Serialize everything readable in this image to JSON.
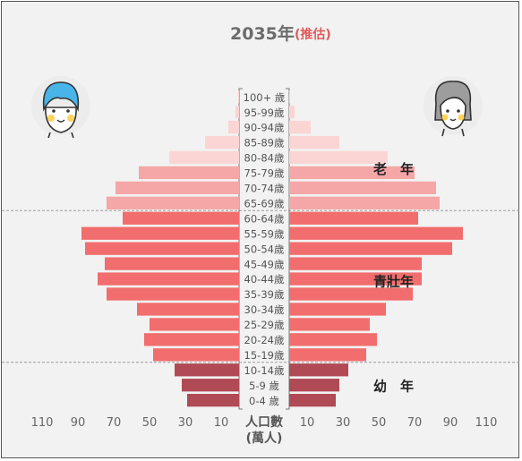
{
  "colors": {
    "young": "#b04a55",
    "working": "#f26d6d",
    "senior_dark": "#f5a6a6",
    "senior_light": "#fbd4d4",
    "background": "#f2f2f2",
    "divider": "#999999"
  },
  "icons": {
    "male": "boy-avatar-icon",
    "female": "grandmother-avatar-icon"
  },
  "chart_data": {
    "type": "bar",
    "orientation": "horizontal-population-pyramid",
    "title": "2035年",
    "subtitle": "(推估)",
    "center_label": "人口數",
    "unit_label": "(萬人)",
    "xlim": [
      0,
      110
    ],
    "ticks_left": [
      "110",
      "90",
      "70",
      "50",
      "30",
      "10"
    ],
    "ticks_right": [
      "10",
      "30",
      "50",
      "70",
      "90",
      "110"
    ],
    "tick_values": [
      10,
      30,
      50,
      70,
      90,
      110
    ],
    "categories": [
      "100+ 歲",
      "95-99歲",
      "90-94歲",
      "85-89歲",
      "80-84歲",
      "75-79歲",
      "70-74歲",
      "65-69歲",
      "60-64歲",
      "55-59歲",
      "50-54歲",
      "45-49歲",
      "40-44歲",
      "35-39歲",
      "30-34歲",
      "25-29歲",
      "20-24歲",
      "15-19歲",
      "10-14歲",
      "5-9 歲",
      "0-4 歲"
    ],
    "series": [
      {
        "side": "left",
        "values": [
          0.5,
          2,
          6,
          19,
          39,
          56,
          69,
          74,
          65,
          88,
          86,
          75,
          79,
          74,
          57,
          50,
          53,
          48,
          36,
          32,
          29
        ]
      },
      {
        "side": "right",
        "values": [
          0.5,
          3,
          12,
          28,
          55,
          70,
          82,
          84,
          72,
          97,
          91,
          74,
          74,
          69,
          54,
          45,
          49,
          43,
          33,
          28,
          26
        ]
      }
    ],
    "groups": [
      {
        "label": "老　年",
        "from": 0,
        "to": 7
      },
      {
        "label": "青壯年",
        "from": 8,
        "to": 17
      },
      {
        "label": "幼　年",
        "from": 18,
        "to": 20
      }
    ]
  }
}
